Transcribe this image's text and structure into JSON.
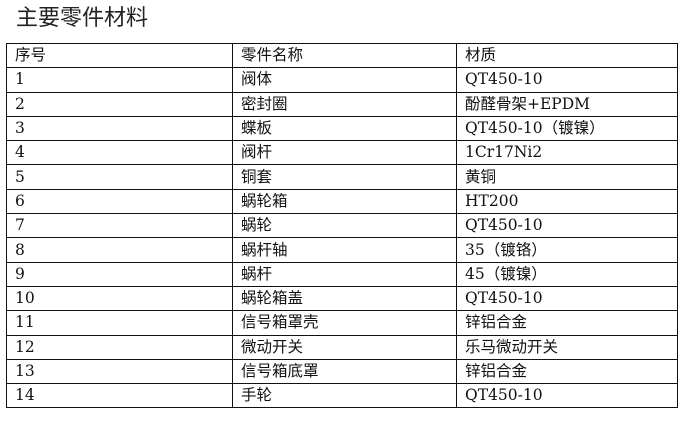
{
  "title": "主要零件材料",
  "table": {
    "headers": [
      "序号",
      "零件名称",
      "材质"
    ],
    "rows": [
      [
        "1",
        "阀体",
        "QT450-10"
      ],
      [
        "2",
        "密封圈",
        "酚醛骨架+EPDM"
      ],
      [
        "3",
        "蝶板",
        "QT450-10（镀镍）"
      ],
      [
        "4",
        "阀杆",
        "1Cr17Ni2"
      ],
      [
        "5",
        "铜套",
        "黄铜"
      ],
      [
        "6",
        "蜗轮箱",
        "HT200"
      ],
      [
        "7",
        "蜗轮",
        "QT450-10"
      ],
      [
        "8",
        "蜗杆轴",
        "35（镀铬）"
      ],
      [
        "9",
        "蜗杆",
        "45（镀镍）"
      ],
      [
        "10",
        "蜗轮箱盖",
        "QT450-10"
      ],
      [
        "11",
        "信号箱罩壳",
        "锌铝合金"
      ],
      [
        "12",
        "微动开关",
        "乐马微动开关"
      ],
      [
        "13",
        "信号箱底罩",
        "锌铝合金"
      ],
      [
        "14",
        "手轮",
        "QT450-10"
      ]
    ]
  }
}
